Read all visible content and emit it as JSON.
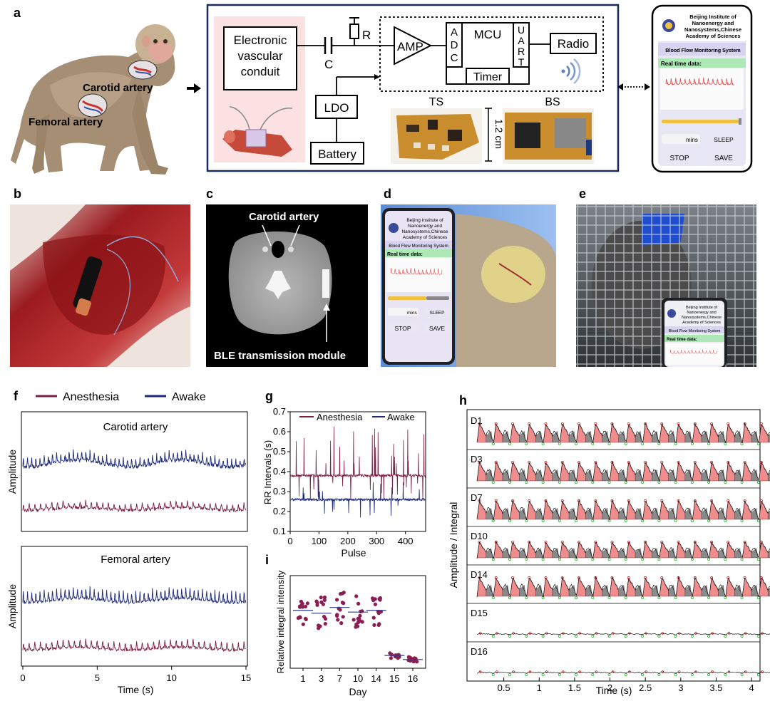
{
  "panels": {
    "a": "a",
    "b": "b",
    "c": "c",
    "d": "d",
    "e": "e",
    "f": "f",
    "g": "g",
    "h": "h",
    "i": "i"
  },
  "panel_a": {
    "carotid_label": "Carotid artery",
    "femoral_label": "Femoral artery",
    "circuit": {
      "conduit_line1": "Electronic",
      "conduit_line2": "vascular",
      "conduit_line3": "conduit",
      "cap_label": "C",
      "res_label": "R",
      "amp_label": "AMP",
      "adc_letters": [
        "A",
        "D",
        "C"
      ],
      "mcu_label": "MCU",
      "uart_letters": [
        "U",
        "A",
        "R",
        "T"
      ],
      "timer_label": "Timer",
      "radio_label": "Radio",
      "ldo_label": "LDO",
      "battery_label": "Battery",
      "ts_label": "TS",
      "bs_label": "BS",
      "size_label": "1.2 cm"
    },
    "phone": {
      "institute_line1": "Beijing Institute of",
      "institute_line2": "Nanoenergy and",
      "institute_line3": "Nanosystems,Chinese",
      "institute_line4": "Academy of Sciences",
      "system_title": "Blood Flow Monitoring System",
      "realtime_label": "Real time data:",
      "mins_label": "mins",
      "sleep_label": "SLEEP",
      "stop_label": "STOP",
      "save_label": "SAVE"
    }
  },
  "panel_c": {
    "carotid_label": "Carotid artery",
    "ble_label": "BLE transmission module"
  },
  "panel_d": {
    "institute_line1": "Beijing Institute of",
    "institute_line2": "Nanoenergy and",
    "institute_line3": "Nanosystems,Chinese",
    "institute_line4": "Academy of Sciences",
    "system_title": "Blood Flow Monitoring System",
    "realtime_label": "Real time data:",
    "mins_label": "mins",
    "sleep_label": "SLEEP",
    "stop_label": "STOP",
    "save_label": "SAVE"
  },
  "panel_e": {
    "institute_line1": "Beijing Institute of",
    "institute_line2": "Nanoenergy and",
    "institute_line3": "Nanosystems,Chinese",
    "institute_line4": "Academy of Sciences",
    "system_title": "Blood Flow Monitoring System",
    "realtime_label": "Real time data:"
  },
  "colors": {
    "anesthesia": "#7a1f45",
    "awake": "#1e2a7a",
    "frame": "#1a2a5a",
    "pink_fill": "#f08c8c",
    "gray_fill": "#8a8a8a",
    "green_dot": "#2db52d",
    "red_dot": "#e02020"
  },
  "chart_data": [
    {
      "id": "f",
      "type": "line",
      "legend": [
        "Anesthesia",
        "Awake"
      ],
      "subplots": [
        {
          "title": "Carotid artery",
          "ylabel": "Amplitude"
        },
        {
          "title": "Femoral artery",
          "ylabel": "Amplitude"
        }
      ],
      "xlabel": "Time (s)",
      "xlim": [
        0,
        15
      ],
      "xticks": [
        "0",
        "5",
        "10",
        "15"
      ],
      "series": [
        {
          "name": "Awake",
          "beat_period_s": 0.28
        },
        {
          "name": "Anesthesia",
          "beat_period_s": 0.38
        }
      ]
    },
    {
      "id": "g",
      "type": "line",
      "ylabel": "RR Intervals (s)",
      "xlabel": "Pulse",
      "xlim": [
        0,
        470
      ],
      "ylim": [
        0.1,
        0.7
      ],
      "xticks": [
        "0",
        "100",
        "200",
        "300",
        "400"
      ],
      "yticks": [
        "0.1",
        "0.2",
        "0.3",
        "0.4",
        "0.5",
        "0.6",
        "0.7"
      ],
      "legend": [
        "Anesthesia",
        "Awake"
      ],
      "series": [
        {
          "name": "Anesthesia",
          "baseline": 0.38
        },
        {
          "name": "Awake",
          "baseline": 0.26
        }
      ]
    },
    {
      "id": "i",
      "type": "scatter",
      "ylabel": "Relative integral intensity",
      "xlabel": "Day",
      "categories": [
        "1",
        "3",
        "7",
        "10",
        "14",
        "15",
        "16"
      ],
      "means": [
        1.0,
        0.95,
        1.05,
        0.97,
        1.0,
        0.22,
        0.15
      ]
    },
    {
      "id": "h",
      "type": "line",
      "ylabel": "Amplitude / Integral",
      "xlabel": "Time (s)",
      "xlim": [
        0,
        4.1
      ],
      "xticks": [
        "0.5",
        "1",
        "1.5",
        "2",
        "2.5",
        "3",
        "3.5",
        "4"
      ],
      "rows": [
        "D1",
        "D3",
        "D7",
        "D10",
        "D14",
        "D15",
        "D16"
      ]
    }
  ]
}
